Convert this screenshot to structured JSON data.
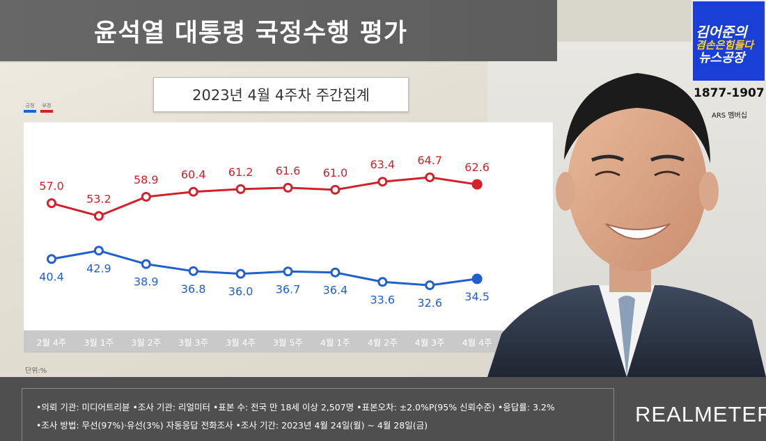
{
  "header": {
    "title": "윤석열 대통령 국정수행 평가",
    "subtitle": "2023년 4월 4주차 주간집계"
  },
  "legend": [
    {
      "label": "긍정",
      "color": "#1f5fd0"
    },
    {
      "label": "부정",
      "color": "#d3202a"
    }
  ],
  "unit_label": "단위:%",
  "channel": {
    "line1": "김어준의",
    "line2": "겸손은힘들다",
    "line3": "뉴스공장",
    "phone": "1877-1907",
    "ars": "ARS 멤버십"
  },
  "footer": {
    "line1": "•의뢰 기관: 미디어트리뷴 •조사 기관: 리얼미터 •표본 수: 전국 만 18세 이상 2,507명 •표본오차: ±2.0%P(95% 신뢰수준) •응답률: 3.2%",
    "line2": "•조사 방법: 무선(97%)·유선(3%) 자동응답 전화조사 •조사 기간: 2023년 4월 24일(월) ~ 4월 28일(금)",
    "brand": "REALMETER"
  },
  "chart_data": {
    "type": "line",
    "categories": [
      "2월 4주",
      "3월 1주",
      "3월 2주",
      "3월 3주",
      "3월 4주",
      "3월 5주",
      "4월 1주",
      "4월 2주",
      "4월 3주",
      "4월 4주"
    ],
    "series": [
      {
        "name": "부정",
        "color": "#d3202a",
        "values": [
          57.0,
          53.2,
          58.9,
          60.4,
          61.2,
          61.6,
          61.0,
          63.4,
          64.7,
          62.6
        ]
      },
      {
        "name": "긍정",
        "color": "#1f5fd0",
        "values": [
          40.4,
          42.9,
          38.9,
          36.8,
          36.0,
          36.7,
          36.4,
          33.6,
          32.6,
          34.5
        ]
      }
    ],
    "ylim": [
      20,
      80
    ],
    "grid": false,
    "legend_position": "top-left"
  }
}
